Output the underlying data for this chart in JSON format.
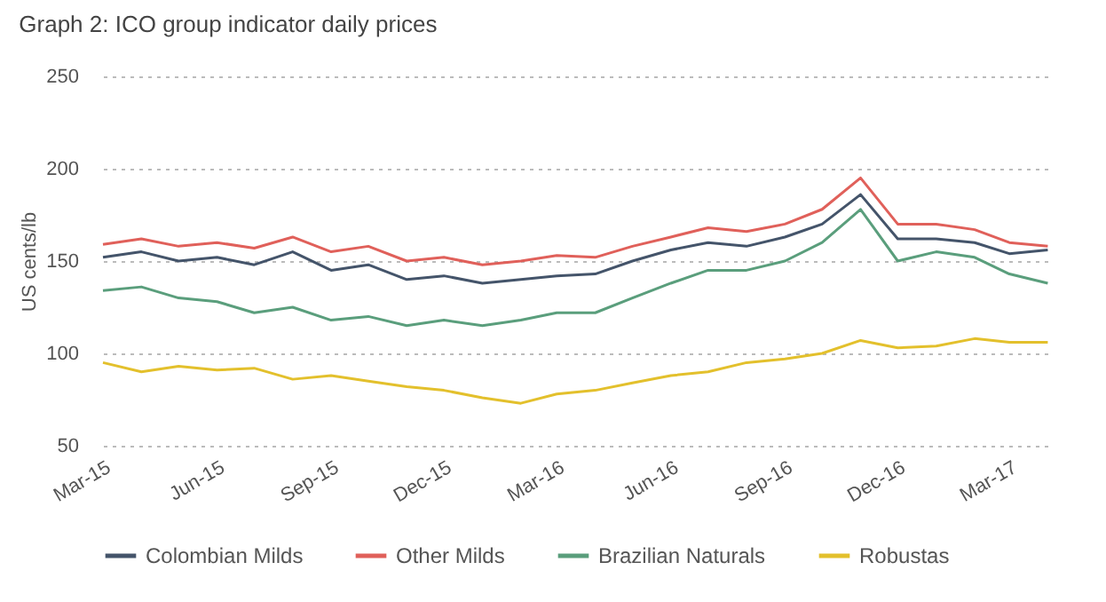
{
  "chart_data": {
    "type": "line",
    "title": "Graph 2: ICO group indicator daily prices",
    "ylabel": "US cents/lb",
    "x": [
      "2015-03-01",
      "2015-04-01",
      "2015-05-01",
      "2015-06-01",
      "2015-07-01",
      "2015-08-01",
      "2015-09-01",
      "2015-10-01",
      "2015-11-01",
      "2015-12-01",
      "2016-01-01",
      "2016-02-01",
      "2016-03-01",
      "2016-04-01",
      "2016-05-01",
      "2016-06-01",
      "2016-07-01",
      "2016-08-01",
      "2016-09-01",
      "2016-10-01",
      "2016-11-01",
      "2016-12-01",
      "2017-01-01",
      "2017-02-01",
      "2017-03-01",
      "2017-04-01"
    ],
    "series": [
      {
        "name": "Colombian Milds",
        "color": "#44546a",
        "values": [
          152,
          155,
          150,
          152,
          148,
          155,
          145,
          148,
          140,
          142,
          138,
          140,
          142,
          143,
          150,
          156,
          160,
          158,
          163,
          170,
          186,
          162,
          162,
          160,
          154,
          156
        ]
      },
      {
        "name": "Other Milds",
        "color": "#e0605a",
        "values": [
          159,
          162,
          158,
          160,
          157,
          163,
          155,
          158,
          150,
          152,
          148,
          150,
          153,
          152,
          158,
          163,
          168,
          166,
          170,
          178,
          195,
          170,
          170,
          167,
          160,
          158
        ]
      },
      {
        "name": "Brazilian Naturals",
        "color": "#5a9e7c",
        "values": [
          134,
          136,
          130,
          128,
          122,
          125,
          118,
          120,
          115,
          118,
          115,
          118,
          122,
          122,
          130,
          138,
          145,
          145,
          150,
          160,
          178,
          150,
          155,
          152,
          143,
          138
        ]
      },
      {
        "name": "Robustas",
        "color": "#e3c02c",
        "values": [
          95,
          90,
          93,
          91,
          92,
          86,
          88,
          85,
          82,
          80,
          76,
          73,
          78,
          80,
          84,
          88,
          90,
          95,
          97,
          100,
          107,
          103,
          104,
          108,
          106,
          106
        ]
      }
    ],
    "xlim": [
      "2015-03-01",
      "2017-04-05"
    ],
    "xticks": [
      {
        "value": "2015-03-01",
        "label": "Mar-15"
      },
      {
        "value": "2015-06-01",
        "label": "Jun-15"
      },
      {
        "value": "2015-09-01",
        "label": "Sep-15"
      },
      {
        "value": "2015-12-01",
        "label": "Dec-15"
      },
      {
        "value": "2016-03-01",
        "label": "Mar-16"
      },
      {
        "value": "2016-06-01",
        "label": "Jun-16"
      },
      {
        "value": "2016-09-01",
        "label": "Sep-16"
      },
      {
        "value": "2016-12-01",
        "label": "Dec-16"
      },
      {
        "value": "2017-03-01",
        "label": "Mar-17"
      }
    ],
    "ylim": [
      50,
      250
    ],
    "yticks": [
      50,
      100,
      150,
      200,
      250
    ],
    "grid": "y",
    "legend": "bottom",
    "marker": "none",
    "line_style": "solid"
  }
}
